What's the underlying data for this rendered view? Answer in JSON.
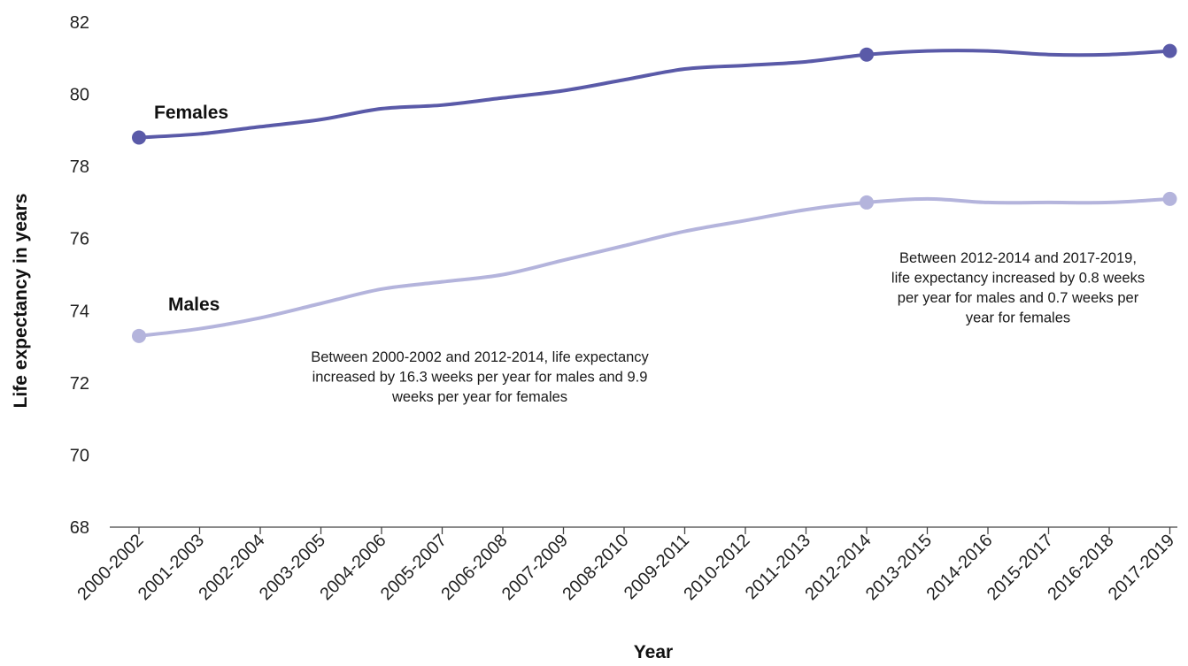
{
  "chart_data": {
    "type": "line",
    "title": "",
    "xlabel": "Year",
    "ylabel": "Life expectancy in years",
    "categories": [
      "2000-2002",
      "2001-2003",
      "2002-2004",
      "2003-2005",
      "2004-2006",
      "2005-2007",
      "2006-2008",
      "2007-2009",
      "2008-2010",
      "2009-2011",
      "2010-2012",
      "2011-2013",
      "2012-2014",
      "2013-2015",
      "2014-2016",
      "2015-2017",
      "2016-2018",
      "2017-2019"
    ],
    "ylim": [
      68,
      82
    ],
    "yticks": [
      68,
      70,
      72,
      74,
      76,
      78,
      80,
      82
    ],
    "grid": false,
    "series": [
      {
        "name": "Females",
        "color": "#5a5aa8",
        "values": [
          78.8,
          78.9,
          79.1,
          79.3,
          79.6,
          79.7,
          79.9,
          80.1,
          80.4,
          80.7,
          80.8,
          80.9,
          81.1,
          81.2,
          81.2,
          81.1,
          81.1,
          81.2
        ],
        "markers_at": [
          0,
          12,
          17
        ]
      },
      {
        "name": "Males",
        "color": "#b4b4dc",
        "values": [
          73.3,
          73.5,
          73.8,
          74.2,
          74.6,
          74.8,
          75.0,
          75.4,
          75.8,
          76.2,
          76.5,
          76.8,
          77.0,
          77.1,
          77.0,
          77.0,
          77.0,
          77.1
        ],
        "markers_at": [
          0,
          12,
          17
        ]
      }
    ],
    "annotations": [
      {
        "lines": [
          "Between 2000-2002 and 2012-2014, life expectancy",
          "increased by 16.3 weeks per year for males and 9.9",
          "weeks per year for females"
        ]
      },
      {
        "lines": [
          "Between 2012-2014 and 2017-2019,",
          "life expectancy increased by 0.8 weeks",
          "per year for males and 0.7 weeks per",
          "year for females"
        ]
      }
    ]
  }
}
